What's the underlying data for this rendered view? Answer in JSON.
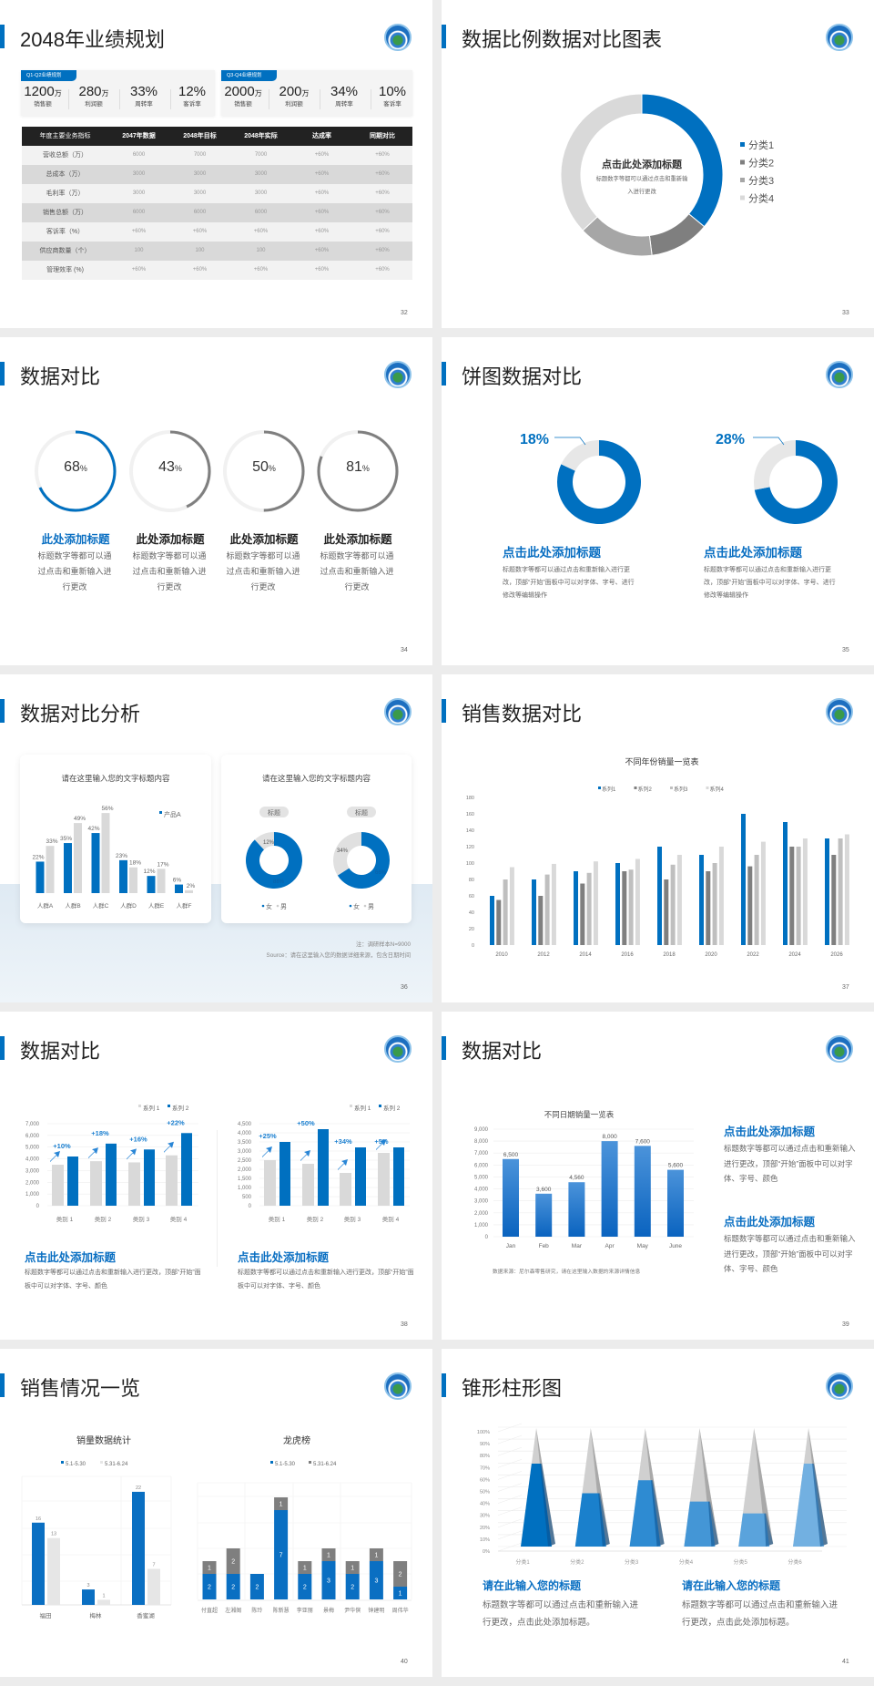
{
  "brand": {
    "accent": "#0070c0",
    "gray_dark": "#7f7f7f",
    "gray_mid": "#a6a6a6",
    "gray_light": "#d9d9d9"
  },
  "s32": {
    "title": "2048年业绩规划",
    "page": "32",
    "q1": {
      "tag": "Q1-Q2业绩规划",
      "stats": [
        {
          "value": "1200",
          "unit": "万",
          "label": "销售额"
        },
        {
          "value": "280",
          "unit": "万",
          "label": "利润额"
        },
        {
          "value": "33%",
          "unit": "",
          "label": "周转率"
        },
        {
          "value": "12%",
          "unit": "",
          "label": "客诉率"
        }
      ]
    },
    "q2": {
      "tag": "Q3-Q4业绩规划",
      "stats": [
        {
          "value": "2000",
          "unit": "万",
          "label": "销售额"
        },
        {
          "value": "200",
          "unit": "万",
          "label": "利润额"
        },
        {
          "value": "34%",
          "unit": "",
          "label": "周转率"
        },
        {
          "value": "10%",
          "unit": "",
          "label": "客诉率"
        }
      ]
    },
    "table": {
      "headers": [
        "年度主要业务指标",
        "2047年数据",
        "2048年目标",
        "2048年实际",
        "达成率",
        "同期对比"
      ],
      "rows": [
        [
          "营收总额（万）",
          "6000",
          "7000",
          "7000",
          "+60%",
          "+60%"
        ],
        [
          "总成本（万）",
          "3000",
          "3000",
          "3000",
          "+60%",
          "+60%"
        ],
        [
          "毛利率（万）",
          "3000",
          "3000",
          "3000",
          "+60%",
          "+60%"
        ],
        [
          "销售总额（万）",
          "6000",
          "6000",
          "6000",
          "+60%",
          "+60%"
        ],
        [
          "客诉率（%）",
          "+60%",
          "+60%",
          "+60%",
          "+60%",
          "+60%"
        ],
        [
          "供应商数量（个）",
          "100",
          "100",
          "100",
          "+60%",
          "+60%"
        ],
        [
          "管理效率 (%)",
          "+60%",
          "+60%",
          "+60%",
          "+60%",
          "+60%"
        ]
      ]
    }
  },
  "s33": {
    "title": "数据比例数据对比图表",
    "page": "33",
    "center_title": "点击此处添加标题",
    "center_desc": "标题数字等都可以通过点击和重新输入进行更改",
    "chart_data": {
      "type": "pie",
      "categories": [
        "分类1",
        "分类2",
        "分类3",
        "分类4"
      ],
      "values": [
        36,
        12,
        15,
        37
      ],
      "colors": [
        "#0070c0",
        "#7f7f7f",
        "#a6a6a6",
        "#d9d9d9"
      ],
      "legend": "right"
    }
  },
  "s34": {
    "title": "数据对比",
    "page": "34",
    "items": [
      {
        "percent": 68,
        "value": "68",
        "unit": "%",
        "heading": "此处添加标题",
        "desc": "标题数字等都可以通过点击和重新输入进行更改",
        "color": "#0070c0"
      },
      {
        "percent": 43,
        "value": "43",
        "unit": "%",
        "heading": "此处添加标题",
        "desc": "标题数字等都可以通过点击和重新输入进行更改",
        "color": "#7f7f7f"
      },
      {
        "percent": 50,
        "value": "50",
        "unit": "%",
        "heading": "此处添加标题",
        "desc": "标题数字等都可以通过点击和重新输入进行更改",
        "color": "#7f7f7f"
      },
      {
        "percent": 81,
        "value": "81",
        "unit": "%",
        "heading": "此处添加标题",
        "desc": "标题数字等都可以通过点击和重新输入进行更改",
        "color": "#7f7f7f"
      }
    ]
  },
  "s35": {
    "title": "饼图数据对比",
    "page": "35",
    "items": [
      {
        "percent": 18,
        "label": "18%",
        "heading": "点击此处添加标题",
        "desc": "标题数字等都可以通过点击和重新输入进行更改，顶部“开始”面板中可以对字体、字号、进行修改等编辑操作"
      },
      {
        "percent": 28,
        "label": "28%",
        "heading": "点击此处添加标题",
        "desc": "标题数字等都可以通过点击和重新输入进行更改，顶部“开始”面板中可以对字体、字号、进行修改等编辑操作"
      }
    ]
  },
  "s36": {
    "title": "数据对比分析",
    "page": "36",
    "left_card": {
      "title": "请在这里输入您的文字标题内容",
      "chart_data": {
        "type": "bar",
        "categories": [
          "人群A",
          "人群B",
          "人群C",
          "人群D",
          "人群E",
          "人群F"
        ],
        "series": [
          {
            "name": "产品A",
            "values": [
              22,
              35,
              42,
              23,
              12,
              6
            ]
          },
          {
            "values": [
              33,
              49,
              56,
              18,
              17,
              2
            ]
          }
        ],
        "unit": "%"
      }
    },
    "right_card": {
      "title": "请在这里输入您的文字标题内容",
      "charts": [
        {
          "tag": "标题",
          "chart_data": {
            "type": "pie",
            "categories": [
              "女",
              "男"
            ],
            "values": [
              88,
              12
            ]
          }
        },
        {
          "tag": "标题",
          "chart_data": {
            "type": "pie",
            "categories": [
              "女",
              "男"
            ],
            "values": [
              66,
              34
            ]
          }
        }
      ]
    },
    "note": "注：调研样本N=9000",
    "source": "Source：请在这里输入您的数据详细来源，包含日期时间"
  },
  "s37": {
    "title": "销售数据对比",
    "page": "37",
    "chart_data": {
      "type": "bar",
      "title": "不同年份销量一览表",
      "categories": [
        "2010",
        "2012",
        "2014",
        "2016",
        "2018",
        "2020",
        "2022",
        "2024",
        "2026"
      ],
      "ylim": [
        0,
        180
      ],
      "yticks": [
        0,
        20,
        40,
        60,
        80,
        100,
        120,
        140,
        160,
        180
      ],
      "legend": "top",
      "series": [
        {
          "name": "系列1",
          "values": [
            60,
            80,
            90,
            100,
            120,
            110,
            160,
            150,
            130
          ]
        },
        {
          "name": "系列2",
          "values": [
            55,
            60,
            75,
            90,
            80,
            90,
            96,
            120,
            110
          ]
        },
        {
          "name": "系列3",
          "values": [
            80,
            86,
            88,
            92,
            98,
            100,
            110,
            120,
            130
          ]
        },
        {
          "name": "系列4",
          "values": [
            95,
            99,
            102,
            105,
            110,
            120,
            126,
            130,
            135
          ]
        }
      ]
    }
  },
  "s38": {
    "title": "数据对比",
    "page": "38",
    "charts": [
      {
        "chart_data": {
          "type": "bar",
          "categories": [
            "类别 1",
            "类别 2",
            "类别 3",
            "类别 4"
          ],
          "ylim": [
            0,
            7000
          ],
          "yticks": [
            "0",
            "1,000",
            "2,000",
            "3,000",
            "4,000",
            "5,000",
            "6,000",
            "7,000"
          ],
          "legend": "top-right",
          "series": [
            {
              "name": "系列 1",
              "values": [
                3500,
                3800,
                3700,
                4300
              ]
            },
            {
              "name": "系列 2",
              "values": [
                4200,
                5300,
                4800,
                6200
              ]
            }
          ],
          "annotations": [
            "+10%",
            "+18%",
            "+16%",
            "+22%"
          ]
        },
        "heading": "点击此处添加标题",
        "desc": "标题数字等都可以通过点击和重新输入进行更改，顶部“开始”面板中可以对字体、字号、颜色"
      },
      {
        "chart_data": {
          "type": "bar",
          "categories": [
            "类别 1",
            "类别 2",
            "类别 3",
            "类别 4"
          ],
          "ylim": [
            0,
            4500
          ],
          "yticks": [
            "0",
            "500",
            "1,000",
            "1,500",
            "2,000",
            "2,500",
            "3,000",
            "3,500",
            "4,000",
            "4,500"
          ],
          "legend": "top-right",
          "series": [
            {
              "name": "系列 1",
              "values": [
                2500,
                2300,
                1800,
                2900
              ]
            },
            {
              "name": "系列 2",
              "values": [
                3500,
                4200,
                3200,
                3200
              ]
            }
          ],
          "annotations": [
            "+25%",
            "+50%",
            "+34%",
            "+5%"
          ]
        },
        "heading": "点击此处添加标题",
        "desc": "标题数字等都可以通过点击和重新输入进行更改，顶部“开始”面板中可以对字体、字号、颜色"
      }
    ]
  },
  "s39": {
    "title": "数据对比",
    "page": "39",
    "chart_data": {
      "type": "bar",
      "title": "不同日期销量一览表",
      "categories": [
        "Jan",
        "Feb",
        "Mar",
        "Apr",
        "May",
        "June"
      ],
      "values": [
        6500,
        3600,
        4560,
        8000,
        7600,
        5600
      ],
      "ylim": [
        0,
        9000
      ],
      "yticks": [
        "0",
        "1,000",
        "2,000",
        "3,000",
        "4,000",
        "5,000",
        "6,000",
        "7,000",
        "8,000",
        "9,000"
      ]
    },
    "source": "数据来源：尼尔森零售研究，请在这里输入数据的来源详情信息",
    "blocks": [
      {
        "heading": "点击此处添加标题",
        "desc": "标题数字等都可以通过点击和重新输入进行更改，顶部“开始”面板中可以对字体、字号、颜色"
      },
      {
        "heading": "点击此处添加标题",
        "desc": "标题数字等都可以通过点击和重新输入进行更改，顶部“开始”面板中可以对字体、字号、颜色"
      }
    ]
  },
  "s40": {
    "title": "销售情况一览",
    "page": "40",
    "charts": [
      {
        "chart_data": {
          "type": "bar",
          "title": "销量数据统计",
          "categories": [
            "福田",
            "梅林",
            "香蜜湖"
          ],
          "series": [
            {
              "name": "5.1-5.30",
              "values": [
                16,
                3,
                22
              ]
            },
            {
              "name": "5.31-6.24",
              "values": [
                13,
                1,
                7
              ]
            }
          ],
          "legend": "top"
        }
      },
      {
        "chart_data": {
          "type": "stacked-bar",
          "title": "龙虎榜",
          "categories": [
            "付直超",
            "左湘阁",
            "陈玲",
            "陈新慧",
            "李亚丽",
            "景梅",
            "尹华傧",
            "钟建明",
            "周伟华"
          ],
          "series": [
            {
              "name": "5.1-5.30",
              "values": [
                2,
                2,
                2,
                7,
                2,
                3,
                2,
                3,
                1
              ]
            },
            {
              "name": "5.31-6.24",
              "values": [
                1,
                2,
                0,
                1,
                1,
                1,
                1,
                1,
                2
              ]
            }
          ],
          "legend": "top"
        }
      }
    ]
  },
  "s41": {
    "title": "锥形柱形图",
    "page": "41",
    "chart_data": {
      "type": "bar",
      "subtype": "3d-cone",
      "categories": [
        "分类1",
        "分类2",
        "分类3",
        "分类4",
        "分类5",
        "分类6"
      ],
      "values": [
        70,
        45,
        56,
        38,
        28,
        70
      ],
      "ylim": [
        0,
        100
      ],
      "yticks": [
        "0%",
        "10%",
        "20%",
        "30%",
        "40%",
        "50%",
        "60%",
        "70%",
        "80%",
        "90%",
        "100%"
      ]
    },
    "blocks": [
      {
        "heading": "请在此输入您的标题",
        "desc": "标题数字等都可以通过点击和重新输入进行更改，点击此处添加标题。"
      },
      {
        "heading": "请在此输入您的标题",
        "desc": "标题数字等都可以通过点击和重新输入进行更改，点击此处添加标题。"
      }
    ]
  }
}
